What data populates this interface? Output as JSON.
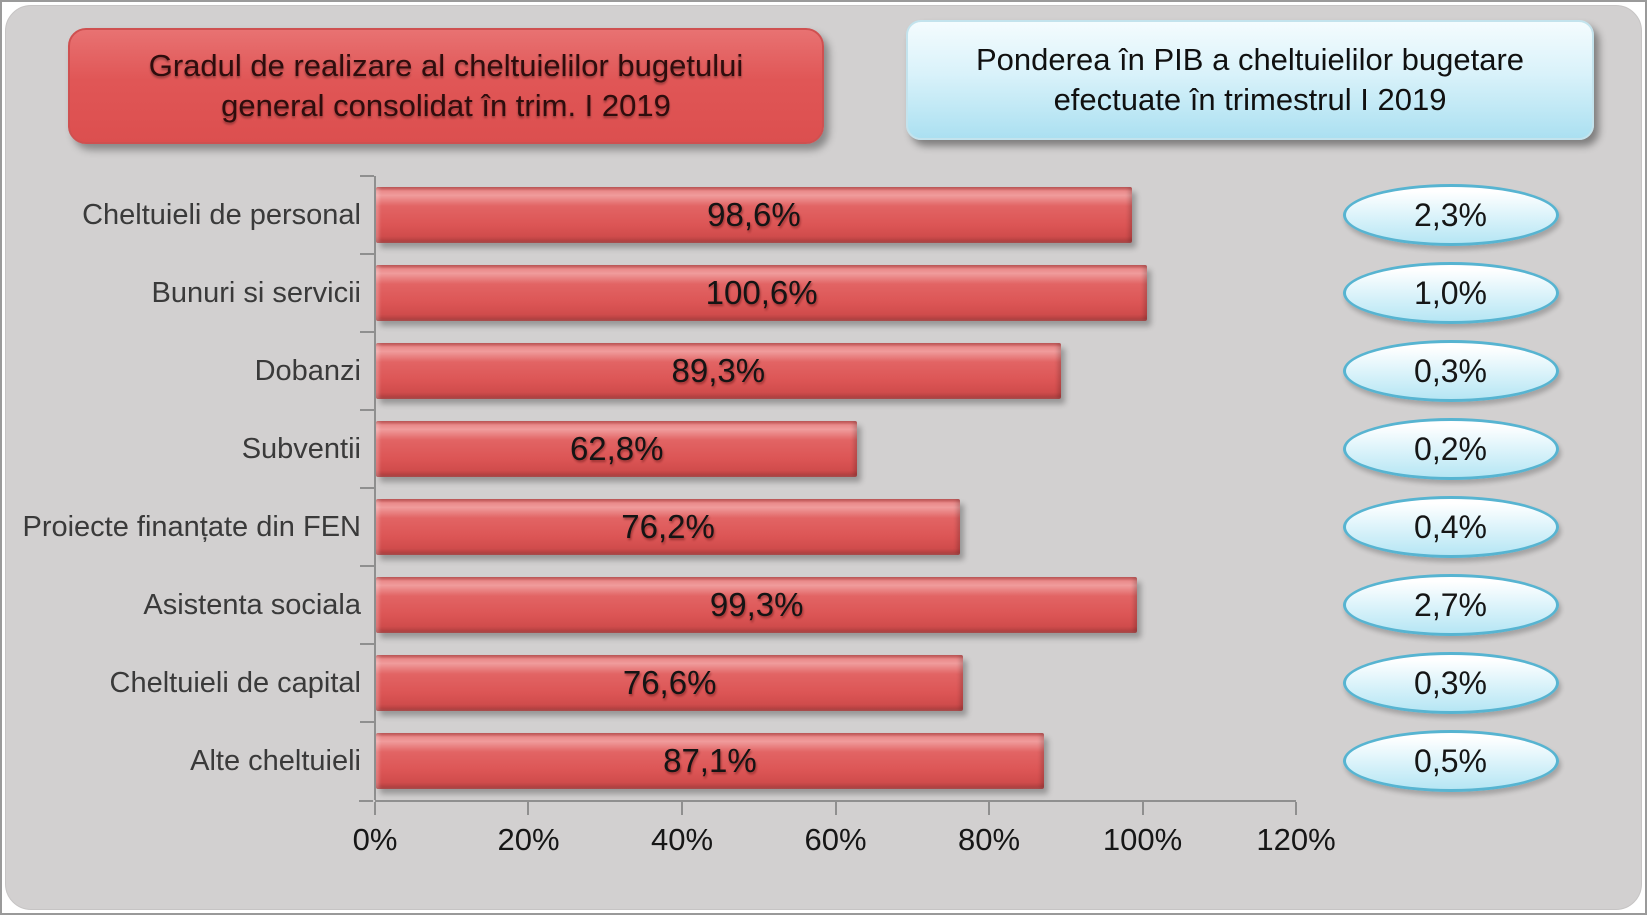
{
  "header": {
    "left_title": "Gradul de realizare al cheltuielilor bugetului general consolidat în trim. I 2019",
    "right_title": "Ponderea în PIB a cheltuielilor bugetare efectuate în trimestrul I 2019"
  },
  "chart_data": {
    "type": "bar",
    "orientation": "horizontal",
    "categories": [
      "Cheltuieli de personal",
      "Bunuri si servicii",
      "Dobanzi",
      "Subventii",
      "Proiecte finanțate din FEN",
      "Asistenta sociala",
      "Cheltuieli de capital",
      "Alte cheltuieli"
    ],
    "series": [
      {
        "name": "Gradul de realizare al cheltuielilor bugetului general consolidat în trim. I 2019",
        "values": [
          98.6,
          100.6,
          89.3,
          62.8,
          76.2,
          99.3,
          76.6,
          87.1
        ],
        "labels": [
          "98,6%",
          "100,6%",
          "89,3%",
          "62,8%",
          "76,2%",
          "99,3%",
          "76,6%",
          "87,1%"
        ]
      },
      {
        "name": "Ponderea în PIB a cheltuielilor bugetare efectuate în trimestrul I 2019",
        "values": [
          2.3,
          1.0,
          0.3,
          0.2,
          0.4,
          2.7,
          0.3,
          0.5
        ],
        "labels": [
          "2,3%",
          "1,0%",
          "0,3%",
          "0,2%",
          "0,4%",
          "2,7%",
          "0,3%",
          "0,5%"
        ]
      }
    ],
    "xlim": [
      0,
      120
    ],
    "x_ticks": [
      {
        "value": 0,
        "label": "0%"
      },
      {
        "value": 20,
        "label": "20%"
      },
      {
        "value": 40,
        "label": "40%"
      },
      {
        "value": 60,
        "label": "60%"
      },
      {
        "value": 80,
        "label": "80%"
      },
      {
        "value": 100,
        "label": "100%"
      },
      {
        "value": 120,
        "label": "120%"
      }
    ],
    "grid": false,
    "legend_position": "none",
    "colors": {
      "background": "#d2d0d0",
      "bar": "#dc5555",
      "bar_highlight": "#f09c9c",
      "bar_dark_edge": "#a93c3c",
      "title_box_red": "#e05656",
      "title_box_blue_top": "#f4fcfe",
      "title_box_blue_bottom": "#abe0f1",
      "oval_border": "#57b4d1",
      "oval_fill_bottom": "#b6e6f4",
      "axis": "#8f8f8f"
    }
  }
}
